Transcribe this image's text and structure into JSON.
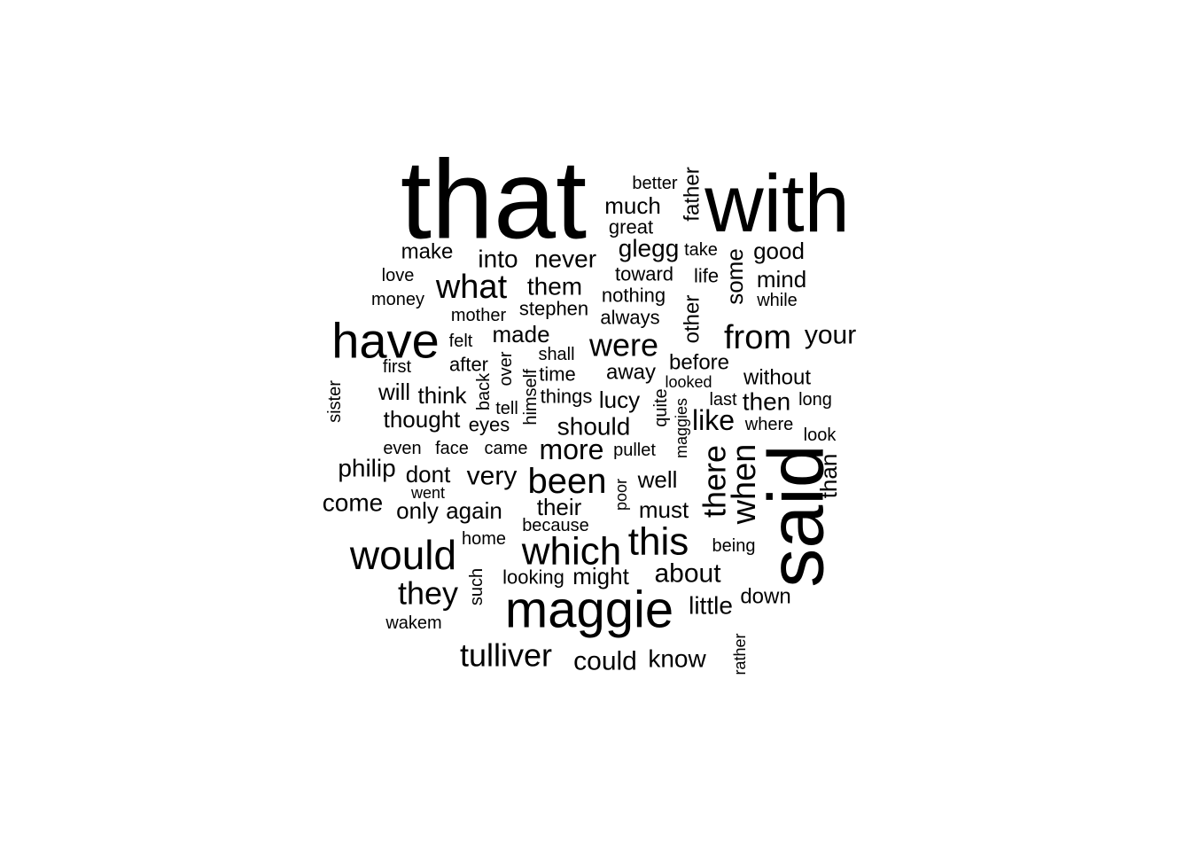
{
  "word_cloud": {
    "words": [
      {
        "id": "that",
        "text": "that"
      },
      {
        "id": "with",
        "text": "with"
      },
      {
        "id": "said",
        "text": "said"
      },
      {
        "id": "have",
        "text": "have"
      },
      {
        "id": "maggie",
        "text": "maggie"
      },
      {
        "id": "would",
        "text": "would"
      },
      {
        "id": "which",
        "text": "which"
      },
      {
        "id": "this",
        "text": "this"
      },
      {
        "id": "been",
        "text": "been"
      },
      {
        "id": "when",
        "text": "when"
      },
      {
        "id": "there",
        "text": "there"
      },
      {
        "id": "from",
        "text": "from"
      },
      {
        "id": "what",
        "text": "what"
      },
      {
        "id": "were",
        "text": "were"
      },
      {
        "id": "they",
        "text": "they"
      },
      {
        "id": "tulliver",
        "text": "tulliver"
      },
      {
        "id": "more",
        "text": "more"
      },
      {
        "id": "could",
        "text": "could"
      },
      {
        "id": "your",
        "text": "your"
      },
      {
        "id": "like",
        "text": "like"
      },
      {
        "id": "about",
        "text": "about"
      },
      {
        "id": "should",
        "text": "should"
      },
      {
        "id": "very",
        "text": "very"
      },
      {
        "id": "know",
        "text": "know"
      },
      {
        "id": "little",
        "text": "little"
      },
      {
        "id": "glegg",
        "text": "glegg"
      },
      {
        "id": "them",
        "text": "them"
      },
      {
        "id": "into",
        "text": "into"
      },
      {
        "id": "never",
        "text": "never"
      },
      {
        "id": "much",
        "text": "much"
      },
      {
        "id": "good",
        "text": "good"
      },
      {
        "id": "mind",
        "text": "mind"
      },
      {
        "id": "make",
        "text": "make"
      },
      {
        "id": "made",
        "text": "made"
      },
      {
        "id": "then",
        "text": "then"
      },
      {
        "id": "philip",
        "text": "philip"
      },
      {
        "id": "come",
        "text": "come"
      },
      {
        "id": "thought",
        "text": "thought"
      },
      {
        "id": "think",
        "text": "think"
      },
      {
        "id": "will",
        "text": "will"
      },
      {
        "id": "lucy",
        "text": "lucy"
      },
      {
        "id": "well",
        "text": "well"
      },
      {
        "id": "must",
        "text": "must"
      },
      {
        "id": "their",
        "text": "their"
      },
      {
        "id": "only",
        "text": "only"
      },
      {
        "id": "again",
        "text": "again"
      },
      {
        "id": "dont",
        "text": "dont"
      },
      {
        "id": "might",
        "text": "might"
      },
      {
        "id": "looking",
        "text": "looking"
      },
      {
        "id": "down",
        "text": "down"
      },
      {
        "id": "before",
        "text": "before"
      },
      {
        "id": "without",
        "text": "without"
      },
      {
        "id": "stephen",
        "text": "stephen"
      },
      {
        "id": "away",
        "text": "away"
      },
      {
        "id": "time",
        "text": "time"
      },
      {
        "id": "things",
        "text": "things"
      },
      {
        "id": "father",
        "text": "father"
      },
      {
        "id": "some",
        "text": "some"
      },
      {
        "id": "other",
        "text": "other"
      },
      {
        "id": "than",
        "text": "than"
      },
      {
        "id": "nothing",
        "text": "nothing"
      },
      {
        "id": "always",
        "text": "always"
      },
      {
        "id": "toward",
        "text": "toward"
      },
      {
        "id": "life",
        "text": "life"
      },
      {
        "id": "take",
        "text": "take"
      },
      {
        "id": "great",
        "text": "great"
      },
      {
        "id": "better",
        "text": "better"
      },
      {
        "id": "love",
        "text": "love"
      },
      {
        "id": "money",
        "text": "money"
      },
      {
        "id": "mother",
        "text": "mother"
      },
      {
        "id": "while",
        "text": "while"
      },
      {
        "id": "felt",
        "text": "felt"
      },
      {
        "id": "shall",
        "text": "shall"
      },
      {
        "id": "after",
        "text": "after"
      },
      {
        "id": "first",
        "text": "first"
      },
      {
        "id": "over",
        "text": "over"
      },
      {
        "id": "back",
        "text": "back"
      },
      {
        "id": "himself",
        "text": "himself"
      },
      {
        "id": "tell",
        "text": "tell"
      },
      {
        "id": "eyes",
        "text": "eyes"
      },
      {
        "id": "came",
        "text": "came"
      },
      {
        "id": "face",
        "text": "face"
      },
      {
        "id": "even",
        "text": "even"
      },
      {
        "id": "pullet",
        "text": "pullet"
      },
      {
        "id": "looked",
        "text": "looked"
      },
      {
        "id": "last",
        "text": "last"
      },
      {
        "id": "long",
        "text": "long"
      },
      {
        "id": "where",
        "text": "where"
      },
      {
        "id": "look",
        "text": "look"
      },
      {
        "id": "quite",
        "text": "quite"
      },
      {
        "id": "maggies",
        "text": "maggies"
      },
      {
        "id": "went",
        "text": "went"
      },
      {
        "id": "because",
        "text": "because"
      },
      {
        "id": "poor",
        "text": "poor"
      },
      {
        "id": "home",
        "text": "home"
      },
      {
        "id": "being",
        "text": "being"
      },
      {
        "id": "such",
        "text": "such"
      },
      {
        "id": "wakem",
        "text": "wakem"
      },
      {
        "id": "rather",
        "text": "rather"
      },
      {
        "id": "sister",
        "text": "sister"
      }
    ]
  }
}
